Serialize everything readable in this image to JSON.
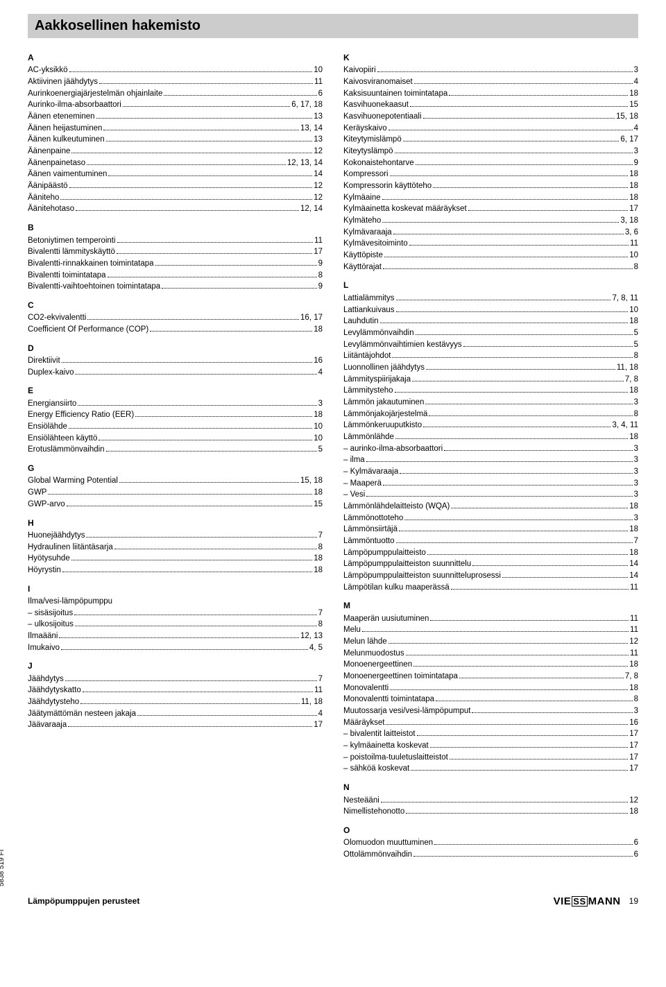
{
  "title": "Aakkosellinen hakemisto",
  "side_label": "5838 519 FI",
  "footer_left": "Lämpöpumppujen perusteet",
  "footer_page": "19",
  "logo_text_left": "VIE",
  "logo_text_mid": "SS",
  "logo_text_right": "MANN",
  "left_sections": [
    {
      "letter": "A",
      "entries": [
        {
          "t": "AC-yksikkö",
          "p": "10"
        },
        {
          "t": "Aktiivinen jäähdytys",
          "p": "11"
        },
        {
          "t": "Aurinkoenergiajärjestelmän ohjainlaite",
          "p": "6"
        },
        {
          "t": "Aurinko-ilma-absorbaattori",
          "p": "6, 17, 18"
        },
        {
          "t": "Äänen eteneminen",
          "p": "13"
        },
        {
          "t": "Äänen heijastuminen",
          "p": "13, 14"
        },
        {
          "t": "Äänen kulkeutuminen",
          "p": "13"
        },
        {
          "t": "Äänenpaine",
          "p": "12"
        },
        {
          "t": "Äänenpainetaso",
          "p": "12, 13, 14"
        },
        {
          "t": "Äänen vaimentuminen",
          "p": "14"
        },
        {
          "t": "Äänipäästö",
          "p": "12"
        },
        {
          "t": "Ääniteho",
          "p": "12"
        },
        {
          "t": "Äänitehotaso",
          "p": "12, 14"
        }
      ]
    },
    {
      "letter": "B",
      "entries": [
        {
          "t": "Betoniytimen temperointi",
          "p": "11"
        },
        {
          "t": "Bivalentti lämmityskäyttö",
          "p": "17"
        },
        {
          "t": "Bivalentti-rinnakkainen toimintatapa",
          "p": "9"
        },
        {
          "t": "Bivalentti toimintatapa",
          "p": "8"
        },
        {
          "t": "Bivalentti-vaihtoehtoinen toimintatapa",
          "p": "9"
        }
      ]
    },
    {
      "letter": "C",
      "entries": [
        {
          "t": "CO2-ekvivalentti",
          "p": "16, 17"
        },
        {
          "t": "Coefficient Of Performance (COP)",
          "p": "18"
        }
      ]
    },
    {
      "letter": "D",
      "entries": [
        {
          "t": "Direktiivit",
          "p": "16"
        },
        {
          "t": "Duplex-kaivo",
          "p": "4"
        }
      ]
    },
    {
      "letter": "E",
      "entries": [
        {
          "t": "Energiansiirto",
          "p": "3"
        },
        {
          "t": "Energy Efficiency Ratio (EER)",
          "p": "18"
        },
        {
          "t": "Ensiölähde",
          "p": "10"
        },
        {
          "t": "Ensiölähteen käyttö",
          "p": "10"
        },
        {
          "t": "Erotuslämmönvaihdin",
          "p": "5"
        }
      ]
    },
    {
      "letter": "G",
      "entries": [
        {
          "t": "Global Warming Potential",
          "p": "15, 18"
        },
        {
          "t": "GWP",
          "p": "18"
        },
        {
          "t": "GWP-arvo",
          "p": "15"
        }
      ]
    },
    {
      "letter": "H",
      "entries": [
        {
          "t": "Huonejäähdytys",
          "p": "7"
        },
        {
          "t": "Hydraulinen liitäntäsarja",
          "p": "8"
        },
        {
          "t": "Hyötysuhde",
          "p": "18"
        },
        {
          "t": "Höyrystin",
          "p": "18"
        }
      ]
    },
    {
      "letter": "I",
      "entries": [
        {
          "t": "Ilma/vesi-lämpöpumppu",
          "p": ""
        },
        {
          "t": "sisäsijoitus",
          "p": "7",
          "sub": true
        },
        {
          "t": "ulkosijoitus",
          "p": "8",
          "sub": true
        },
        {
          "t": "Ilmaääni",
          "p": "12, 13"
        },
        {
          "t": "Imukaivo",
          "p": "4, 5"
        }
      ]
    },
    {
      "letter": "J",
      "entries": [
        {
          "t": "Jäähdytys",
          "p": "7"
        },
        {
          "t": "Jäähdytyskatto",
          "p": "11"
        },
        {
          "t": "Jäähdytysteho",
          "p": "11, 18"
        },
        {
          "t": "Jäätymättömän nesteen jakaja",
          "p": "4"
        },
        {
          "t": "Jäävaraaja",
          "p": "17"
        }
      ]
    }
  ],
  "right_sections": [
    {
      "letter": "K",
      "entries": [
        {
          "t": "Kaivopiiri",
          "p": "3"
        },
        {
          "t": "Kaivosviranomaiset",
          "p": "4"
        },
        {
          "t": "Kaksisuuntainen toimintatapa",
          "p": "18"
        },
        {
          "t": "Kasvihuonekaasut",
          "p": "15"
        },
        {
          "t": "Kasvihuonepotentiaali",
          "p": "15, 18"
        },
        {
          "t": "Keräyskaivo",
          "p": "4"
        },
        {
          "t": "Kiteytymislämpö",
          "p": "6, 17"
        },
        {
          "t": "Kiteytyslämpö",
          "p": "3"
        },
        {
          "t": "Kokonaistehontarve",
          "p": "9"
        },
        {
          "t": "Kompressori",
          "p": "18"
        },
        {
          "t": "Kompressorin käyttöteho",
          "p": "18"
        },
        {
          "t": "Kylmäaine",
          "p": "18"
        },
        {
          "t": "Kylmäainetta koskevat määräykset",
          "p": "17"
        },
        {
          "t": "Kylmäteho",
          "p": "3, 18"
        },
        {
          "t": "Kylmävaraaja",
          "p": "3, 6"
        },
        {
          "t": "Kylmävesitoiminto",
          "p": "11"
        },
        {
          "t": "Käyttöpiste",
          "p": "10"
        },
        {
          "t": "Käyttörajat",
          "p": "8"
        }
      ]
    },
    {
      "letter": "L",
      "entries": [
        {
          "t": "Lattialämmitys",
          "p": "7, 8, 11"
        },
        {
          "t": "Lattiankuivaus",
          "p": "10"
        },
        {
          "t": "Lauhdutin",
          "p": "18"
        },
        {
          "t": "Levylämmönvaihdin",
          "p": "5"
        },
        {
          "t": "Levylämmönvaihtimien kestävyys",
          "p": "5"
        },
        {
          "t": "Liitäntäjohdot",
          "p": "8"
        },
        {
          "t": "Luonnollinen jäähdytys",
          "p": "11, 18"
        },
        {
          "t": "Lämmityspiirijakaja",
          "p": "7, 8"
        },
        {
          "t": "Lämmitysteho",
          "p": "18"
        },
        {
          "t": "Lämmön jakautuminen",
          "p": "3"
        },
        {
          "t": "Lämmönjakojärjestelmä",
          "p": "8"
        },
        {
          "t": "Lämmönkeruuputkisto",
          "p": "3, 4, 11"
        },
        {
          "t": "Lämmönlähde",
          "p": "18"
        },
        {
          "t": "aurinko-ilma-absorbaattori",
          "p": "3",
          "sub": true
        },
        {
          "t": "ilma",
          "p": "3",
          "sub": true
        },
        {
          "t": "Kylmävaraaja",
          "p": "3",
          "sub": true
        },
        {
          "t": "Maaperä",
          "p": "3",
          "sub": true
        },
        {
          "t": "Vesi",
          "p": "3",
          "sub": true
        },
        {
          "t": "Lämmönlähdelaitteisto (WQA)",
          "p": "18"
        },
        {
          "t": "Lämmönottoteho",
          "p": "3"
        },
        {
          "t": "Lämmönsiirtäjä",
          "p": "18"
        },
        {
          "t": "Lämmöntuotto",
          "p": "7"
        },
        {
          "t": "Lämpöpumppulaitteisto",
          "p": "18"
        },
        {
          "t": "Lämpöpumppulaitteiston suunnittelu",
          "p": "14"
        },
        {
          "t": "Lämpöpumppulaitteiston suunnitteluprosessi",
          "p": "14"
        },
        {
          "t": "Lämpötilan kulku maaperässä",
          "p": "11"
        }
      ]
    },
    {
      "letter": "M",
      "entries": [
        {
          "t": "Maaperän uusiutuminen",
          "p": "11"
        },
        {
          "t": "Melu",
          "p": "11"
        },
        {
          "t": "Melun lähde",
          "p": "12"
        },
        {
          "t": "Melunmuodostus",
          "p": "11"
        },
        {
          "t": "Monoenergeettinen",
          "p": "18"
        },
        {
          "t": "Monoenergeettinen toimintatapa",
          "p": "7, 8"
        },
        {
          "t": "Monovalentti",
          "p": "18"
        },
        {
          "t": "Monovalentti toimintatapa",
          "p": "8"
        },
        {
          "t": "Muutossarja vesi/vesi-lämpöpumput",
          "p": "3"
        },
        {
          "t": "Määräykset",
          "p": "16"
        },
        {
          "t": "bivalentit laitteistot",
          "p": "17",
          "sub": true
        },
        {
          "t": "kylmäainetta koskevat",
          "p": "17",
          "sub": true
        },
        {
          "t": "poistoilma-tuuletuslaitteistot",
          "p": "17",
          "sub": true
        },
        {
          "t": "sähköä koskevat",
          "p": "17",
          "sub": true
        }
      ]
    },
    {
      "letter": "N",
      "entries": [
        {
          "t": "Nesteääni",
          "p": "12"
        },
        {
          "t": "Nimellistehonotto",
          "p": "18"
        }
      ]
    },
    {
      "letter": "O",
      "entries": [
        {
          "t": "Olomuodon muuttuminen",
          "p": "6"
        },
        {
          "t": "Ottolämmönvaihdin",
          "p": "6"
        }
      ]
    }
  ]
}
